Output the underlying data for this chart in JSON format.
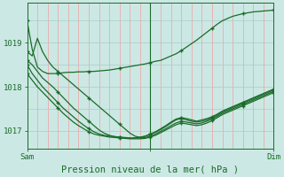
{
  "xlabel": "Pression niveau de la mer( hPa )",
  "bg_color": "#cce8e4",
  "line_color": "#1a6b2a",
  "grid_color_v": "#f0a0a0",
  "grid_color_h": "#a8ccc8",
  "ylim": [
    1016.6,
    1019.9
  ],
  "xlim": [
    0,
    48
  ],
  "xtick_positions": [
    0,
    24,
    48
  ],
  "xtick_labels": [
    "Sam",
    "",
    "Dim"
  ],
  "ytick_positions": [
    1017,
    1018,
    1019
  ],
  "ytick_labels": [
    "1017",
    "1018",
    "1019"
  ],
  "vline_x": 24,
  "n_vgrid": 25,
  "n_hgrid_minor": 6,
  "series": [
    [
      1019.5,
      1018.85,
      1018.45,
      1018.35,
      1018.3,
      1018.3,
      1018.3,
      1018.32,
      1018.33,
      1018.33,
      1018.34,
      1018.34,
      1018.35,
      1018.35,
      1018.36,
      1018.37,
      1018.38,
      1018.4,
      1018.42,
      1018.44,
      1018.46,
      1018.48,
      1018.5,
      1018.52,
      1018.55,
      1018.58,
      1018.6,
      1018.65,
      1018.7,
      1018.75,
      1018.82,
      1018.9,
      1018.98,
      1019.06,
      1019.15,
      1019.24,
      1019.33,
      1019.42,
      1019.5,
      1019.55,
      1019.6,
      1019.63,
      1019.66,
      1019.68,
      1019.7,
      1019.71,
      1019.72,
      1019.73,
      1019.74
    ],
    [
      1018.8,
      1018.7,
      1019.1,
      1018.8,
      1018.6,
      1018.45,
      1018.35,
      1018.25,
      1018.15,
      1018.05,
      1017.95,
      1017.85,
      1017.75,
      1017.65,
      1017.55,
      1017.45,
      1017.35,
      1017.25,
      1017.15,
      1017.05,
      1016.95,
      1016.88,
      1016.85,
      1016.88,
      1016.93,
      1016.98,
      1017.05,
      1017.12,
      1017.2,
      1017.27,
      1017.3,
      1017.28,
      1017.25,
      1017.22,
      1017.25,
      1017.28,
      1017.32,
      1017.38,
      1017.45,
      1017.5,
      1017.55,
      1017.6,
      1017.65,
      1017.7,
      1017.75,
      1017.8,
      1017.85,
      1017.9,
      1017.95
    ],
    [
      1018.6,
      1018.5,
      1018.35,
      1018.2,
      1018.1,
      1018.0,
      1017.88,
      1017.76,
      1017.64,
      1017.52,
      1017.42,
      1017.32,
      1017.22,
      1017.12,
      1017.02,
      1016.95,
      1016.9,
      1016.87,
      1016.85,
      1016.84,
      1016.83,
      1016.84,
      1016.86,
      1016.88,
      1016.92,
      1016.97,
      1017.03,
      1017.1,
      1017.18,
      1017.25,
      1017.28,
      1017.25,
      1017.22,
      1017.2,
      1017.22,
      1017.25,
      1017.3,
      1017.36,
      1017.43,
      1017.48,
      1017.53,
      1017.58,
      1017.63,
      1017.68,
      1017.73,
      1017.78,
      1017.83,
      1017.88,
      1017.93
    ],
    [
      1018.5,
      1018.3,
      1018.15,
      1018.0,
      1017.88,
      1017.76,
      1017.64,
      1017.52,
      1017.42,
      1017.32,
      1017.22,
      1017.13,
      1017.05,
      1016.98,
      1016.93,
      1016.9,
      1016.88,
      1016.87,
      1016.86,
      1016.85,
      1016.84,
      1016.84,
      1016.84,
      1016.85,
      1016.88,
      1016.93,
      1016.99,
      1017.05,
      1017.12,
      1017.18,
      1017.22,
      1017.2,
      1017.18,
      1017.16,
      1017.18,
      1017.22,
      1017.27,
      1017.33,
      1017.4,
      1017.45,
      1017.5,
      1017.55,
      1017.6,
      1017.65,
      1017.7,
      1017.75,
      1017.8,
      1017.85,
      1017.9
    ],
    [
      1018.3,
      1018.15,
      1018.0,
      1017.88,
      1017.76,
      1017.64,
      1017.52,
      1017.4,
      1017.3,
      1017.2,
      1017.12,
      1017.05,
      1016.98,
      1016.93,
      1016.9,
      1016.88,
      1016.86,
      1016.85,
      1016.84,
      1016.83,
      1016.82,
      1016.82,
      1016.82,
      1016.83,
      1016.86,
      1016.9,
      1016.96,
      1017.02,
      1017.08,
      1017.14,
      1017.18,
      1017.16,
      1017.14,
      1017.12,
      1017.14,
      1017.18,
      1017.23,
      1017.3,
      1017.37,
      1017.42,
      1017.47,
      1017.52,
      1017.57,
      1017.62,
      1017.67,
      1017.72,
      1017.77,
      1017.82,
      1017.87
    ]
  ],
  "marker": "+",
  "marker_interval": 6,
  "linewidth": 0.9,
  "markersize": 3.5,
  "label_fontsize": 6.5,
  "xlabel_fontsize": 7.5
}
